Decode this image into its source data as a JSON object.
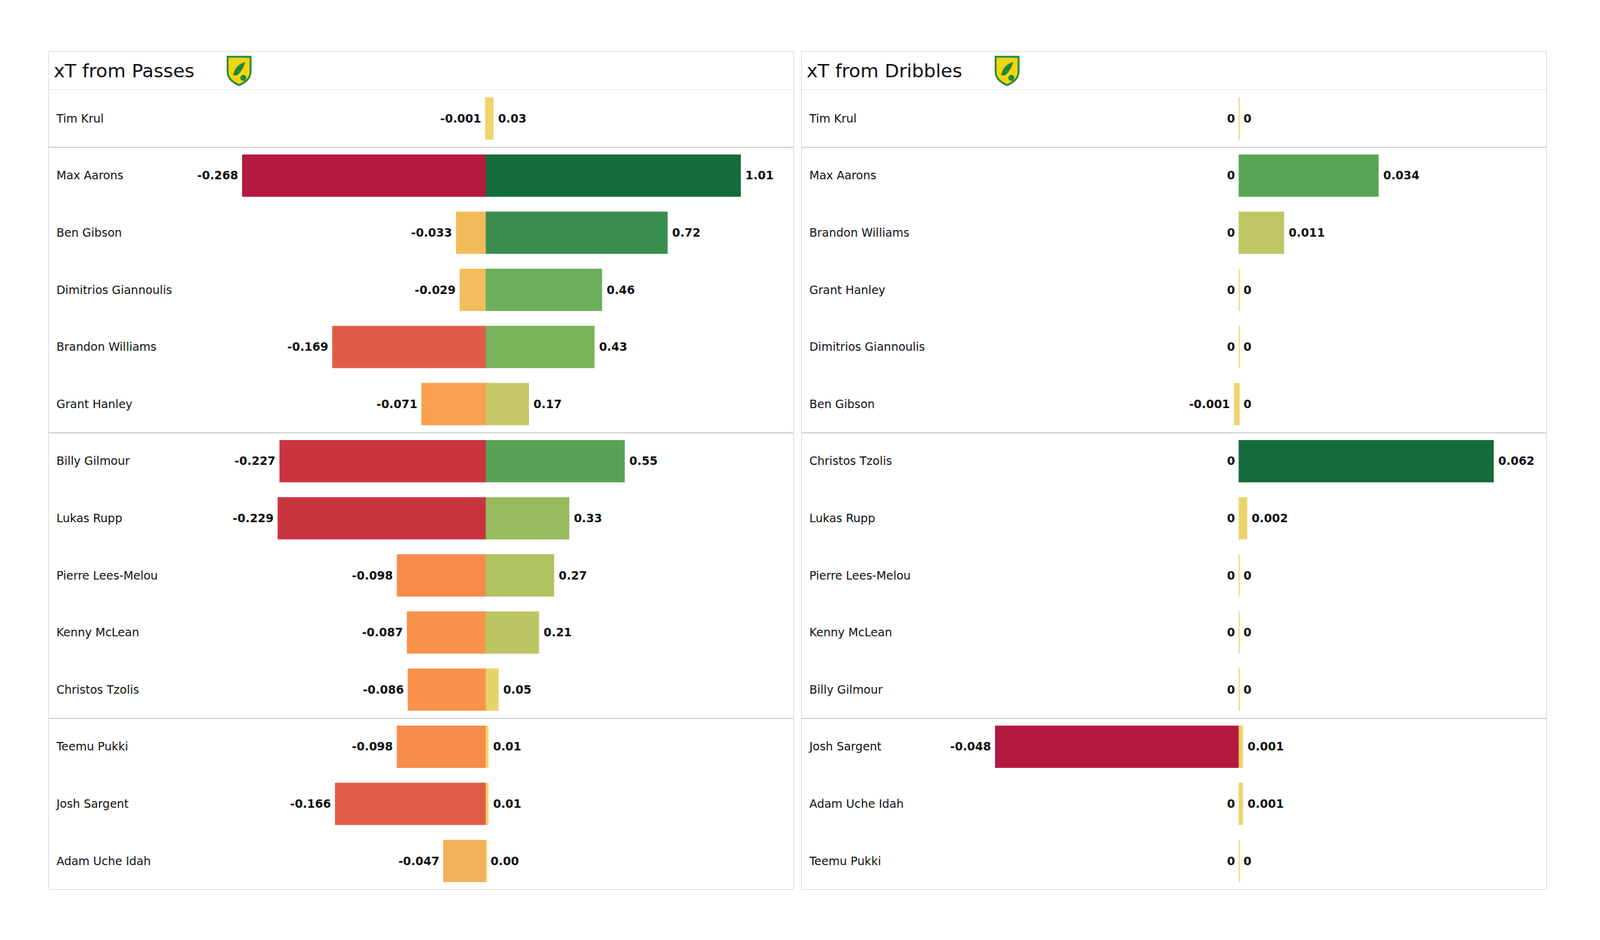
{
  "chart_data": [
    {
      "type": "bar",
      "orientation": "horizontal",
      "title": "xT from Passes",
      "data_labels": true,
      "tick_labels": false,
      "categories": [
        "Tim Krul",
        "Max Aarons",
        "Ben Gibson",
        "Dimitrios Giannoulis",
        "Brandon Williams",
        "Grant Hanley",
        "Billy Gilmour",
        "Lukas Rupp",
        "Pierre Lees-Melou",
        "Kenny McLean",
        "Christos Tzolis",
        "Teemu Pukki",
        "Josh Sargent",
        "Adam Uche Idah"
      ],
      "series": [
        {
          "values": [
            -0.001,
            -0.268,
            -0.033,
            -0.029,
            -0.169,
            -0.071,
            -0.227,
            -0.229,
            -0.098,
            -0.087,
            -0.086,
            -0.098,
            -0.166,
            -0.047
          ],
          "colors": [
            "#efd366",
            "#b5193f",
            "#f2bb5a",
            "#f2be5c",
            "#e05c49",
            "#f8a04e",
            "#c9343f",
            "#c8353f",
            "#f78b4c",
            "#f8924c",
            "#f8924c",
            "#f78b4c",
            "#e25d49",
            "#f5b15a"
          ],
          "xlim": [
            -0.268,
            0
          ]
        },
        {
          "values": [
            0.03,
            1.01,
            0.72,
            0.46,
            0.43,
            0.17,
            0.55,
            0.33,
            0.27,
            0.21,
            0.05,
            0.01,
            0.01,
            0
          ],
          "value_labels": [
            "0.03",
            "1.01",
            "0.72",
            "0.46",
            "0.43",
            "0.17",
            "0.55",
            "0.33",
            "0.27",
            "0.21",
            "0.05",
            "0.01",
            "0.01",
            "0.00"
          ],
          "colors": [
            "#eed46a",
            "#146c3a",
            "#3a8d4f",
            "#6aae59",
            "#77b35a",
            "#c5c766",
            "#57a255",
            "#98bb5d",
            "#aec260",
            "#bcc563",
            "#e8d36b",
            "#f0d86a",
            "#f0d86a",
            "#f0d86a"
          ],
          "xlim": [
            0,
            1.01
          ]
        }
      ]
    },
    {
      "type": "bar",
      "orientation": "horizontal",
      "title": "xT from Dribbles",
      "data_labels": true,
      "tick_labels": false,
      "categories": [
        "Tim Krul",
        "Max Aarons",
        "Brandon Williams",
        "Grant Hanley",
        "Dimitrios Giannoulis",
        "Ben Gibson",
        "Christos Tzolis",
        "Lukas Rupp",
        "Pierre Lees-Melou",
        "Kenny McLean",
        "Billy Gilmour",
        "Josh Sargent",
        "Adam Uche Idah",
        "Teemu Pukki"
      ],
      "series": [
        {
          "values": [
            0,
            0,
            0,
            0,
            0,
            -0.001,
            0,
            0,
            0,
            0,
            0,
            -0.048,
            0,
            0
          ],
          "colors": [
            "#efd771",
            "#efd771",
            "#efd771",
            "#efd771",
            "#efd771",
            "#ecd36a",
            "#efd771",
            "#efd771",
            "#efd771",
            "#efd771",
            "#efd771",
            "#b5193f",
            "#efd771",
            "#efd771"
          ],
          "xlim": [
            -0.048,
            0
          ]
        },
        {
          "values": [
            0,
            0.034,
            0.011,
            0,
            0,
            0,
            0.062,
            0.002,
            0,
            0,
            0,
            0.001,
            0.001,
            0
          ],
          "colors": [
            "#efd771",
            "#58a655",
            "#bec563",
            "#efd771",
            "#efd771",
            "#efd771",
            "#146c3a",
            "#ecd36a",
            "#efd771",
            "#efd771",
            "#efd771",
            "#ecd36a",
            "#ecd36a",
            "#efd771"
          ],
          "xlim": [
            0,
            0.062
          ]
        }
      ]
    }
  ]
}
